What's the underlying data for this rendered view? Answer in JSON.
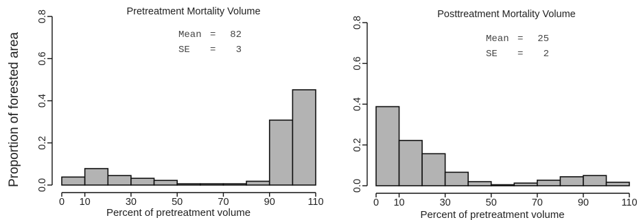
{
  "figure": {
    "ylabel": "Proportion of forested area"
  },
  "chart_data": [
    {
      "type": "bar",
      "title": "Pretreatment Mortality Volume",
      "xlabel": "Percent of pretreatment volume",
      "bin_edges": [
        0,
        10,
        20,
        30,
        40,
        50,
        60,
        70,
        80,
        90,
        100,
        110
      ],
      "values": [
        0.038,
        0.078,
        0.045,
        0.032,
        0.022,
        0.006,
        0.006,
        0.006,
        0.018,
        0.308,
        0.452
      ],
      "xticks": [
        "0",
        "10",
        "30",
        "50",
        "70",
        "90",
        "110"
      ],
      "xtick_values": [
        0,
        10,
        30,
        50,
        70,
        90,
        110
      ],
      "yticks": [
        "0.0",
        "0.2",
        "0.4",
        "0.6",
        "0.8"
      ],
      "ytick_values": [
        0,
        0.2,
        0.4,
        0.6,
        0.8
      ],
      "xlim": [
        0,
        110
      ],
      "ylim": [
        0,
        0.8
      ],
      "stats": {
        "mean_label": "Mean",
        "mean_value": "82",
        "se_label": "SE",
        "se_value": "3"
      }
    },
    {
      "type": "bar",
      "title": "Posttreatment Mortality Volume",
      "xlabel": "Percent of pretreatment volume",
      "bin_edges": [
        0,
        10,
        20,
        30,
        40,
        50,
        60,
        70,
        80,
        90,
        100,
        110
      ],
      "values": [
        0.388,
        0.222,
        0.157,
        0.066,
        0.02,
        0.005,
        0.013,
        0.027,
        0.044,
        0.05,
        0.017
      ],
      "xticks": [
        "0",
        "10",
        "30",
        "50",
        "70",
        "90",
        "110"
      ],
      "xtick_values": [
        0,
        10,
        30,
        50,
        70,
        90,
        110
      ],
      "yticks": [
        "0.0",
        "0.2",
        "0.4",
        "0.6",
        "0.8"
      ],
      "ytick_values": [
        0,
        0.2,
        0.4,
        0.6,
        0.8
      ],
      "xlim": [
        0,
        110
      ],
      "ylim": [
        0,
        0.8
      ],
      "stats": {
        "mean_label": "Mean",
        "mean_value": "25",
        "se_label": "SE",
        "se_value": "2"
      }
    }
  ]
}
